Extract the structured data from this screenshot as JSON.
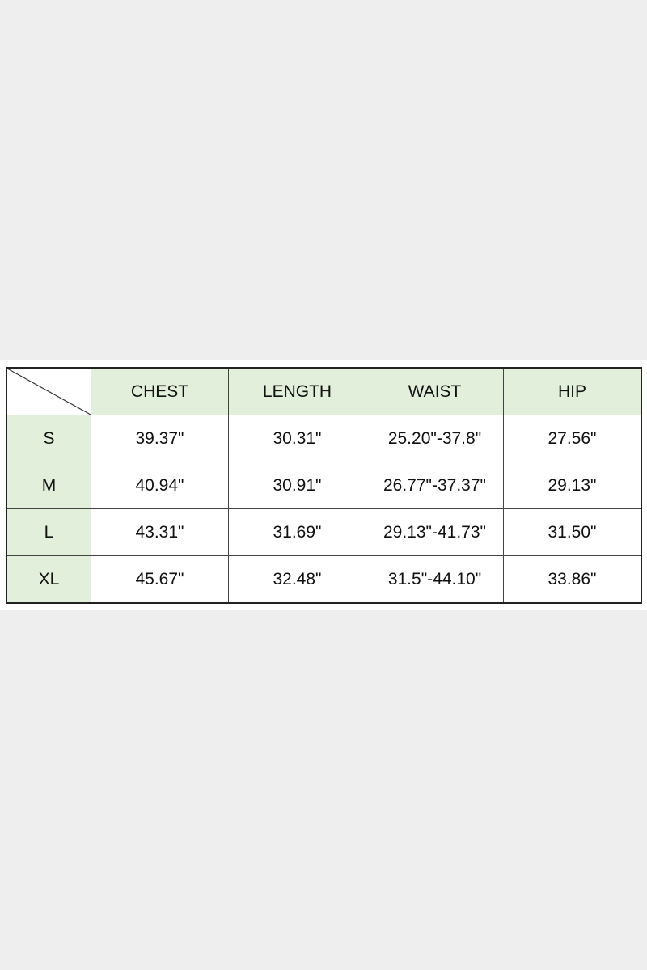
{
  "table": {
    "headers": [
      "CHEST",
      "LENGTH",
      "WAIST",
      "HIP"
    ],
    "rows": [
      {
        "size": "S",
        "values": [
          "39.37\"",
          "30.31\"",
          "25.20\"-37.8\"",
          "27.56\""
        ]
      },
      {
        "size": "M",
        "values": [
          "40.94\"",
          "30.91\"",
          "26.77\"-37.37\"",
          "29.13\""
        ]
      },
      {
        "size": "L",
        "values": [
          "43.31\"",
          "31.69\"",
          "29.13\"-41.73\"",
          "31.50\""
        ]
      },
      {
        "size": "XL",
        "values": [
          "45.67\"",
          "32.48\"",
          "31.5\"-44.10\"",
          "33.86\""
        ]
      }
    ]
  },
  "colors": {
    "header_fill": "#e2efda",
    "page_background": "#eeeeee"
  }
}
